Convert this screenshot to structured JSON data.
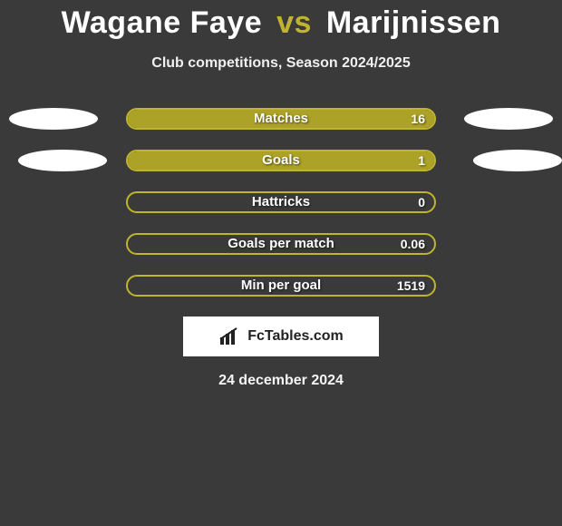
{
  "title": {
    "player1": "Wagane Faye",
    "vs": "vs",
    "player2": "Marijnissen"
  },
  "subtitle": "Club competitions, Season 2024/2025",
  "colors": {
    "background": "#3a3a3a",
    "accent": "#c0b42f",
    "bar_fill": "#aca227",
    "text": "#ffffff",
    "oval": "#ffffff"
  },
  "bars": {
    "track_width": 342,
    "track_height": 24,
    "border_width": 2,
    "border_radius": 12
  },
  "side_ovals": {
    "rows": [
      0,
      1
    ],
    "left_offsets": [
      10,
      20
    ],
    "right_offsets": [
      10,
      0
    ]
  },
  "stats": [
    {
      "label": "Matches",
      "value": "16",
      "fill_pct": 100
    },
    {
      "label": "Goals",
      "value": "1",
      "fill_pct": 100
    },
    {
      "label": "Hattricks",
      "value": "0",
      "fill_pct": 0
    },
    {
      "label": "Goals per match",
      "value": "0.06",
      "fill_pct": 0
    },
    {
      "label": "Min per goal",
      "value": "1519",
      "fill_pct": 0
    }
  ],
  "logo_text": "FcTables.com",
  "date": "24 december 2024"
}
